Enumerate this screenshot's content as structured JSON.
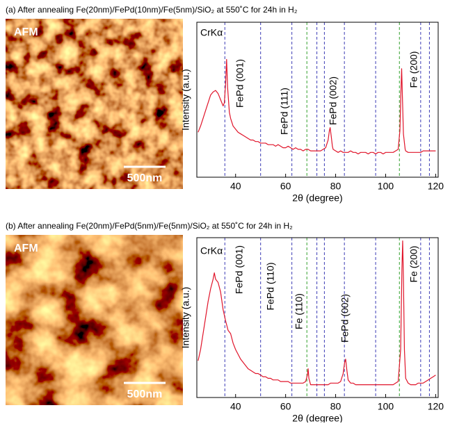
{
  "chart_data": [
    {
      "type": "line",
      "title": "(a) After annealing Fe(20nm)/FePd(10nm)/Fe(5nm)/SiO₂ at 550˚C for 24h in H₂",
      "image_label": "AFM",
      "scale_bar": "500nm",
      "xlabel": "2θ (degree)",
      "ylabel": "Intensity (a.u.)",
      "annotations": [
        "CrKα",
        "FePd (001)",
        "FePd (111)",
        "FePd (002)",
        "Fe (200)"
      ],
      "xlim": [
        24.5,
        121
      ],
      "ylim": [
        0,
        100
      ],
      "xticks": [
        40,
        60,
        80,
        100,
        120
      ],
      "color": "#e0142a",
      "reference_lines": [
        {
          "x": 35.7,
          "color": "#3b3bb5"
        },
        {
          "x": 50,
          "color": "#3b3bb5"
        },
        {
          "x": 62.5,
          "color": "#3b3bb5"
        },
        {
          "x": 68.5,
          "color": "#33a02c"
        },
        {
          "x": 72.5,
          "color": "#3b3bb5"
        },
        {
          "x": 75.5,
          "color": "#3b3bb5"
        },
        {
          "x": 83.5,
          "color": "#3b3bb5"
        },
        {
          "x": 96,
          "color": "#3b3bb5"
        },
        {
          "x": 105.5,
          "color": "#33a02c"
        },
        {
          "x": 114,
          "color": "#3b3bb5"
        },
        {
          "x": 117.5,
          "color": "#3b3bb5"
        }
      ],
      "x": [
        25,
        26,
        27,
        28,
        29,
        30,
        31,
        32,
        33,
        34,
        35,
        35.5,
        36,
        36.4,
        36.8,
        37.5,
        38,
        39,
        40,
        41,
        42,
        43,
        44,
        45,
        46,
        47,
        48,
        49,
        50,
        51,
        52,
        53,
        54,
        55,
        56,
        57,
        58,
        59,
        60,
        61,
        62,
        63,
        64,
        65,
        66,
        67,
        68,
        69,
        70,
        71,
        72,
        73,
        74,
        75,
        76,
        77,
        77.5,
        77.8,
        78.2,
        78.7,
        79,
        80,
        81,
        82,
        83,
        84,
        85,
        86,
        87,
        88,
        89,
        90,
        91,
        92,
        93,
        94,
        95,
        96,
        97,
        98,
        99,
        100,
        101,
        102,
        103,
        104,
        105,
        105.7,
        106.1,
        106.4,
        106.7,
        107.1,
        107.8,
        108,
        109,
        110,
        111,
        112,
        113,
        114,
        115,
        116,
        117,
        118,
        119,
        120
      ],
      "values": [
        29,
        33,
        38,
        43,
        48,
        53,
        55,
        56,
        54,
        50,
        46,
        48,
        60,
        76,
        58,
        42,
        38,
        33,
        31,
        29,
        28,
        27,
        26,
        25,
        24,
        24,
        23,
        23,
        22,
        22,
        22,
        21,
        21,
        21,
        20,
        21,
        20,
        19,
        19,
        20,
        19,
        18,
        19,
        18,
        18,
        17,
        18,
        18,
        17,
        17,
        17,
        17,
        17,
        18,
        19,
        24,
        30,
        32,
        27,
        20,
        18,
        17,
        16,
        17,
        16,
        16,
        16,
        17,
        16,
        16,
        15,
        16,
        16,
        16,
        15,
        16,
        16,
        15,
        16,
        16,
        15,
        16,
        16,
        16,
        16,
        17,
        18,
        30,
        55,
        70,
        52,
        28,
        18,
        17,
        16,
        16,
        16,
        16,
        16,
        16,
        17,
        17,
        17,
        17,
        17,
        17
      ]
    },
    {
      "type": "line",
      "title": "(b) After annealing Fe(20nm)/FePd(5nm)/Fe(5nm)/SiO₂ at 550˚C for 24h in H₂",
      "image_label": "AFM",
      "scale_bar": "500nm",
      "xlabel": "2θ (degree)",
      "ylabel": "Intensity (a.u.)",
      "annotations": [
        "CrKα",
        "FePd (001)",
        "FePd (110)",
        "Fe (110)",
        "FePd (002)",
        "Fe (200)"
      ],
      "xlim": [
        24.5,
        121
      ],
      "ylim": [
        0,
        100
      ],
      "xticks": [
        40,
        60,
        80,
        100,
        120
      ],
      "color": "#e0142a",
      "reference_lines": [
        {
          "x": 35.7,
          "color": "#3b3bb5"
        },
        {
          "x": 50,
          "color": "#3b3bb5"
        },
        {
          "x": 62.5,
          "color": "#3b3bb5"
        },
        {
          "x": 68.5,
          "color": "#33a02c"
        },
        {
          "x": 72.5,
          "color": "#3b3bb5"
        },
        {
          "x": 75.5,
          "color": "#3b3bb5"
        },
        {
          "x": 83.5,
          "color": "#3b3bb5"
        },
        {
          "x": 96,
          "color": "#3b3bb5"
        },
        {
          "x": 105.5,
          "color": "#33a02c"
        },
        {
          "x": 114,
          "color": "#3b3bb5"
        },
        {
          "x": 117.5,
          "color": "#3b3bb5"
        }
      ],
      "x": [
        25,
        26,
        27,
        28,
        29,
        30,
        31,
        31.5,
        32,
        33,
        34,
        35,
        36,
        37,
        38,
        38.5,
        39,
        40,
        41,
        42,
        43,
        44,
        45,
        46,
        47,
        48,
        49,
        50,
        51,
        52,
        53,
        54,
        55,
        56,
        57,
        58,
        59,
        60,
        61,
        62,
        63,
        64,
        65,
        66,
        67,
        68,
        68.7,
        69,
        69.3,
        70,
        71,
        72,
        73,
        74,
        75,
        76,
        77,
        78,
        79,
        80,
        81,
        82,
        83,
        83.6,
        84,
        84.5,
        85,
        86,
        87,
        88,
        89,
        90,
        91,
        92,
        93,
        94,
        95,
        96,
        97,
        98,
        99,
        100,
        101,
        102,
        103,
        104,
        105,
        106,
        106.5,
        106.8,
        107.1,
        107.5,
        108,
        109,
        110,
        111,
        112,
        113,
        114,
        115,
        116,
        117,
        118,
        119,
        120
      ],
      "values": [
        23,
        30,
        40,
        50,
        60,
        68,
        74,
        78,
        74,
        72,
        66,
        55,
        48,
        42,
        40,
        37,
        34,
        30,
        27,
        24,
        22,
        20,
        18,
        17,
        16,
        15,
        15,
        14,
        13,
        13,
        12,
        12,
        11,
        11,
        11,
        10,
        10,
        10,
        10,
        9,
        9,
        9,
        9,
        9,
        9,
        10,
        14,
        18,
        12,
        8,
        8,
        8,
        8,
        8,
        8,
        8,
        8,
        9,
        9,
        9,
        9,
        10,
        15,
        22,
        24,
        17,
        11,
        9,
        9,
        8,
        8,
        8,
        8,
        8,
        8,
        8,
        8,
        8,
        8,
        8,
        8,
        8,
        8,
        8,
        8,
        9,
        10,
        30,
        80,
        98,
        75,
        30,
        12,
        9,
        8,
        8,
        8,
        9,
        9,
        9,
        10,
        11,
        12,
        13,
        14
      ]
    }
  ]
}
